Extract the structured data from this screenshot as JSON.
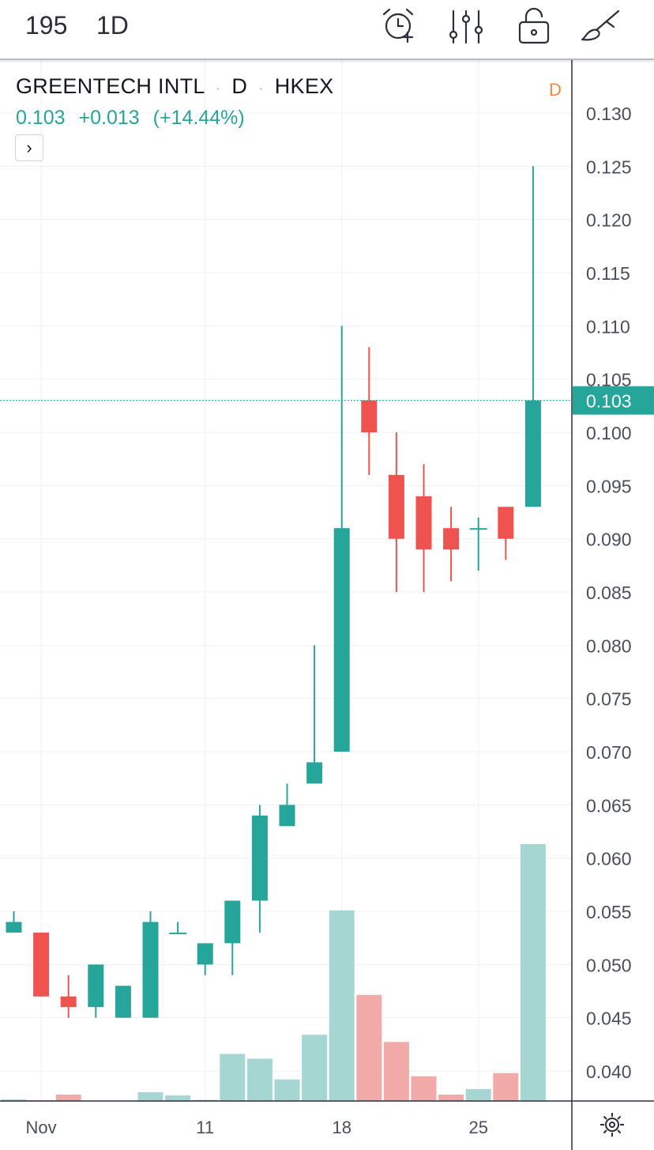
{
  "toolbar": {
    "symbol": "195",
    "interval": "1D",
    "icons": [
      "alarm-add-icon",
      "indicators-sliders-icon",
      "lock-icon",
      "drawing-brush-icon"
    ]
  },
  "legend": {
    "name": "GREENTECH INTL",
    "sep": "·",
    "timeframe": "D",
    "exchange": "HKEX",
    "last": "0.103",
    "change": "+0.013",
    "change_pct": "(+14.44%)",
    "expand_label": "›"
  },
  "badge": "D",
  "colors": {
    "up": "#26a69a",
    "down": "#ef5350",
    "up_volume": "#a5d6d2",
    "down_volume": "#f2aaa8",
    "grid": "#eef0f3",
    "axis_text": "#4a4f5c"
  },
  "chart_data": {
    "type": "candlestick",
    "ylim": [
      0.0365,
      0.1345
    ],
    "y_ticks": [
      "0.040",
      "0.045",
      "0.050",
      "0.055",
      "0.060",
      "0.065",
      "0.070",
      "0.075",
      "0.080",
      "0.085",
      "0.090",
      "0.095",
      "0.100",
      "0.105",
      "0.110",
      "0.115",
      "0.120",
      "0.125",
      "0.130"
    ],
    "x_tick_labels": [
      "Nov",
      "11",
      "18",
      "25"
    ],
    "x_tick_positions": [
      1,
      7,
      12,
      17
    ],
    "last_price_label": "0.103",
    "last_price": 0.103,
    "candles": [
      {
        "o": 0.053,
        "h": 0.055,
        "l": 0.053,
        "c": 0.054,
        "v": 0.2
      },
      {
        "o": 0.053,
        "h": 0.053,
        "l": 0.047,
        "c": 0.047,
        "v": 0.1
      },
      {
        "o": 0.047,
        "h": 0.049,
        "l": 0.045,
        "c": 0.046,
        "v": 0.8
      },
      {
        "o": 0.046,
        "h": 0.05,
        "l": 0.045,
        "c": 0.05,
        "v": 0.0
      },
      {
        "o": 0.045,
        "h": 0.048,
        "l": 0.045,
        "c": 0.048,
        "v": 0.0
      },
      {
        "o": 0.045,
        "h": 0.055,
        "l": 0.045,
        "c": 0.054,
        "v": 1.1
      },
      {
        "o": 0.053,
        "h": 0.054,
        "l": 0.053,
        "c": 0.053,
        "v": 0.7
      },
      {
        "o": 0.05,
        "h": 0.052,
        "l": 0.049,
        "c": 0.052,
        "v": 0.15
      },
      {
        "o": 0.052,
        "h": 0.056,
        "l": 0.049,
        "c": 0.056,
        "v": 5.9
      },
      {
        "o": 0.056,
        "h": 0.065,
        "l": 0.053,
        "c": 0.064,
        "v": 5.3
      },
      {
        "o": 0.063,
        "h": 0.067,
        "l": 0.063,
        "c": 0.065,
        "v": 2.7
      },
      {
        "o": 0.067,
        "h": 0.08,
        "l": 0.067,
        "c": 0.069,
        "v": 8.3
      },
      {
        "o": 0.07,
        "h": 0.11,
        "l": 0.07,
        "c": 0.091,
        "v": 23.9
      },
      {
        "o": 0.103,
        "h": 0.108,
        "l": 0.096,
        "c": 0.1,
        "v": 13.3
      },
      {
        "o": 0.096,
        "h": 0.1,
        "l": 0.085,
        "c": 0.09,
        "v": 7.4
      },
      {
        "o": 0.094,
        "h": 0.097,
        "l": 0.085,
        "c": 0.089,
        "v": 3.1
      },
      {
        "o": 0.091,
        "h": 0.093,
        "l": 0.086,
        "c": 0.089,
        "v": 0.8
      },
      {
        "o": 0.091,
        "h": 0.092,
        "l": 0.087,
        "c": 0.091,
        "v": 1.5
      },
      {
        "o": 0.093,
        "h": 0.093,
        "l": 0.088,
        "c": 0.09,
        "v": 3.5
      },
      {
        "o": 0.093,
        "h": 0.125,
        "l": 0.093,
        "c": 0.103,
        "v": 32.2
      }
    ]
  }
}
